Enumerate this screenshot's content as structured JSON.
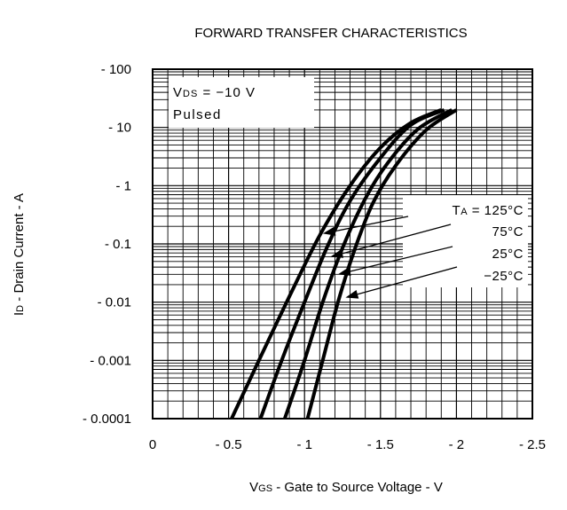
{
  "chart_data": {
    "type": "line",
    "title": "FORWARD TRANSFER CHARACTERISTICS",
    "xlabel": {
      "main": "V",
      "sub": "GS",
      "rest": " - Gate to Source Voltage - V"
    },
    "ylabel": {
      "main": "I",
      "sub": "D",
      "rest": " - Drain Current - A"
    },
    "xscale": "linear",
    "yscale": "log",
    "xlim": [
      0,
      -2.5
    ],
    "ylim": [
      -0.0001,
      -100
    ],
    "grid": true,
    "x_ticks": [
      {
        "value": 0,
        "label": "0"
      },
      {
        "value": -0.5,
        "label": "- 0.5"
      },
      {
        "value": -1,
        "label": "- 1"
      },
      {
        "value": -1.5,
        "label": "- 1.5"
      },
      {
        "value": -2,
        "label": "- 2"
      },
      {
        "value": -2.5,
        "label": "- 2.5"
      }
    ],
    "y_ticks": [
      {
        "value": -100,
        "label": "- 100"
      },
      {
        "value": -10,
        "label": "- 10"
      },
      {
        "value": -1,
        "label": "- 1"
      },
      {
        "value": -0.1,
        "label": "- 0.1"
      },
      {
        "value": -0.01,
        "label": "- 0.01"
      },
      {
        "value": -0.001,
        "label": "- 0.001"
      },
      {
        "value": -0.0001,
        "label": "- 0.0001"
      }
    ],
    "conditions": {
      "vds": {
        "main": "V",
        "sub": "DS",
        "rest": " = −10 V"
      },
      "pulsed": "Pulsed"
    },
    "legend_title": {
      "main": "T",
      "sub": "A",
      "rest": " = "
    },
    "series": [
      {
        "name": "125°C",
        "x": [
          -0.52,
          -0.7,
          -0.9,
          -1.1,
          -1.3,
          -1.5,
          -1.7,
          -1.9
        ],
        "y": [
          -0.0001,
          -0.001,
          -0.0125,
          -0.14,
          -1.0,
          -4.5,
          -12.0,
          -20.0
        ]
      },
      {
        "name": "75°C",
        "x": [
          -0.71,
          -0.85,
          -1.0,
          -1.15,
          -1.3,
          -1.5,
          -1.7,
          -1.92
        ],
        "y": [
          -0.0001,
          -0.001,
          -0.01,
          -0.09,
          -0.55,
          -3.0,
          -11.0,
          -20.0
        ]
      },
      {
        "name": "25°C",
        "x": [
          -0.87,
          -1.0,
          -1.12,
          -1.25,
          -1.4,
          -1.55,
          -1.75,
          -1.97
        ],
        "y": [
          -0.0001,
          -0.001,
          -0.01,
          -0.085,
          -0.6,
          -2.5,
          -9.5,
          -20.0
        ]
      },
      {
        "name": "−25°C",
        "x": [
          -1.02,
          -1.12,
          -1.22,
          -1.33,
          -1.45,
          -1.6,
          -1.8,
          -2.0
        ],
        "y": [
          -0.0001,
          -0.001,
          -0.01,
          -0.08,
          -0.5,
          -2.2,
          -9.0,
          -20.0
        ]
      }
    ],
    "arrow_targets": [
      {
        "x": -1.12,
        "y": -0.15
      },
      {
        "x": -1.17,
        "y": -0.06
      },
      {
        "x": -1.22,
        "y": -0.03
      },
      {
        "x": -1.27,
        "y": -0.012
      }
    ]
  }
}
